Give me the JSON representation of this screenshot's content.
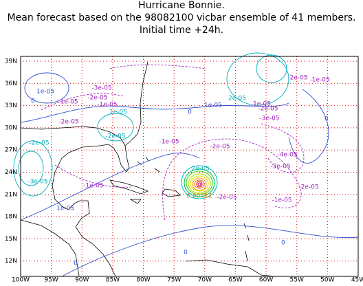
{
  "header": {
    "lines": [
      "Hurricane Bonnie.",
      "Mean forecast based on the 98082100 vicbar ensemble of 41 members.",
      "Initial time +24h."
    ]
  },
  "map": {
    "x_labels": [
      "100W",
      "95W",
      "90W",
      "85W",
      "80W",
      "75W",
      "70W",
      "65W",
      "60W",
      "55W",
      "50W",
      "45W"
    ],
    "y_labels": [
      "39N",
      "36N",
      "33N",
      "30N",
      "27N",
      "24N",
      "21N",
      "18N",
      "15N",
      "12N"
    ],
    "contour_labels": [
      "1e-05",
      "0",
      "-3e-05",
      "-2e-05",
      "-1e-05",
      "-1e-05",
      "1e-05",
      "-2e-05",
      "-2e-05",
      "-2e-05",
      "-1e-05",
      "-2e-05",
      "-3e-05",
      "-1e-05",
      "1e-05",
      "2e-05",
      "1e-05",
      "0",
      "1e-05",
      "-2e-05",
      "-3e-05",
      "-2e-05",
      "-1e-05",
      "-4e-05",
      "-3e-05",
      "-2e-05",
      "-1e-05",
      "-2e-05",
      "0.00012",
      "2e-05",
      "0",
      "0",
      "0",
      "0"
    ]
  }
}
